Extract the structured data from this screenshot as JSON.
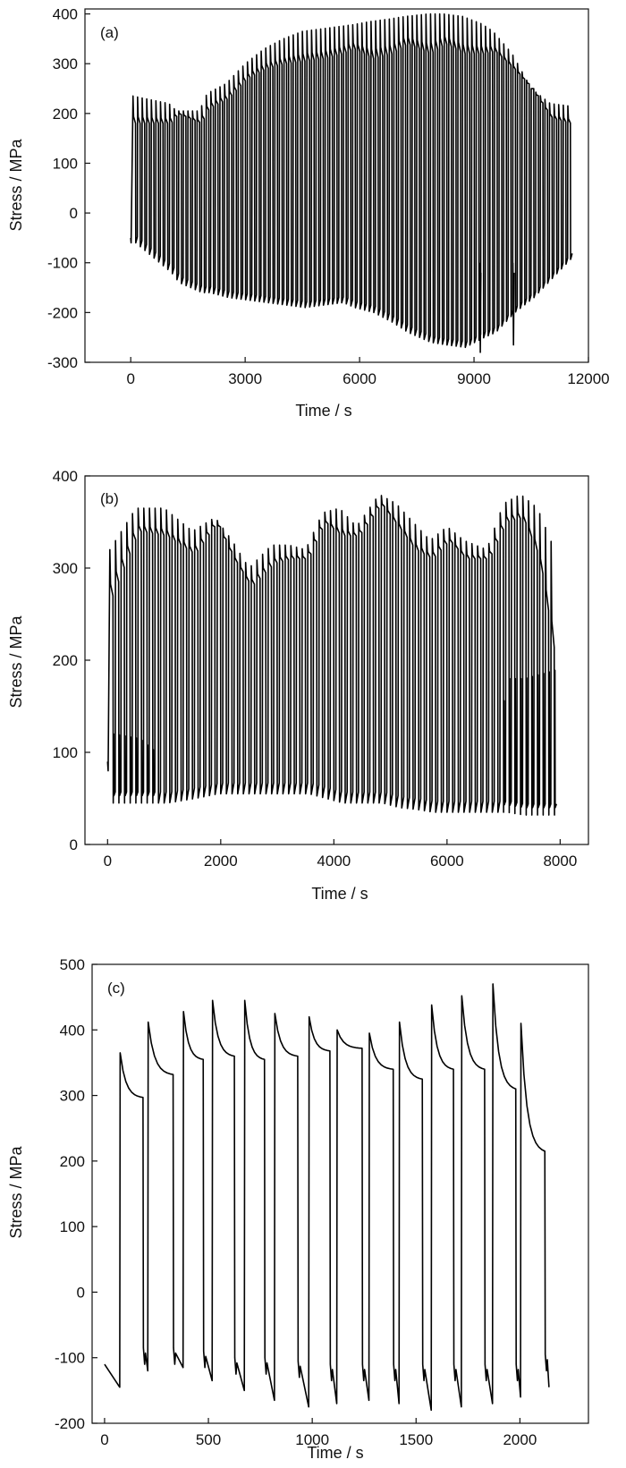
{
  "chart_data": [
    {
      "type": "line",
      "panel_label": "(a)",
      "xlabel": "Time / s",
      "ylabel": "Stress / MPa",
      "xlim": [
        -1200,
        12000
      ],
      "ylim": [
        -300,
        410
      ],
      "xticks": [
        0,
        3000,
        6000,
        9000,
        12000
      ],
      "yticks": [
        -300,
        -200,
        -100,
        0,
        100,
        200,
        300,
        400
      ],
      "grid": false,
      "legend": "none",
      "cycle_period_s": 120,
      "series": [
        {
          "start": {
            "x": 0,
            "y": -50
          },
          "cycle_x": [
            60,
            1000,
            1200,
            1800,
            2000,
            2500,
            3000,
            3500,
            4000,
            4500,
            5000,
            5500,
            5800,
            6300,
            6800,
            7200,
            7800,
            8200,
            8700,
            9200,
            9500,
            10000,
            10500,
            11000,
            11500
          ],
          "peak": [
            235,
            220,
            205,
            205,
            240,
            260,
            300,
            330,
            350,
            365,
            370,
            375,
            378,
            385,
            390,
            395,
            400,
            400,
            395,
            380,
            365,
            320,
            250,
            220,
            215
          ],
          "hold_end": [
            180,
            180,
            200,
            180,
            210,
            230,
            270,
            290,
            300,
            305,
            310,
            320,
            330,
            310,
            320,
            340,
            320,
            340,
            320,
            320,
            325,
            290,
            250,
            190,
            180
          ],
          "valley": [
            -60,
            -120,
            -140,
            -160,
            -160,
            -170,
            -175,
            -180,
            -185,
            -190,
            -185,
            -180,
            -190,
            -200,
            -220,
            -240,
            -260,
            -265,
            -270,
            -250,
            -240,
            -200,
            -170,
            -130,
            -90
          ]
        }
      ],
      "annotations": [
        {
          "x": 9150,
          "y": -280,
          "text": ""
        },
        {
          "x": 10020,
          "y": -265,
          "text": ""
        }
      ]
    },
    {
      "type": "line",
      "panel_label": "(b)",
      "xlabel": "Time / s",
      "ylabel": "Stress / MPa",
      "xlim": [
        -400,
        8500
      ],
      "ylim": [
        0,
        400
      ],
      "xticks": [
        0,
        2000,
        4000,
        6000,
        8000
      ],
      "yticks": [
        0,
        100,
        200,
        300,
        400
      ],
      "grid": false,
      "legend": "none",
      "cycle_period_s": 100,
      "series": [
        {
          "start": {
            "x": 0,
            "y": 90
          },
          "cycle_x": [
            40,
            500,
            1000,
            1500,
            1900,
            2200,
            2500,
            2900,
            3200,
            3500,
            3800,
            4100,
            4400,
            4800,
            5100,
            5400,
            5700,
            6000,
            6300,
            6700,
            7000,
            7300,
            7600,
            7900
          ],
          "peak": [
            320,
            365,
            365,
            340,
            355,
            330,
            300,
            325,
            325,
            320,
            360,
            365,
            345,
            380,
            370,
            350,
            330,
            345,
            330,
            320,
            370,
            380,
            365,
            320
          ],
          "hold_end": [
            270,
            340,
            335,
            315,
            350,
            310,
            280,
            305,
            310,
            310,
            350,
            335,
            335,
            370,
            345,
            320,
            310,
            330,
            310,
            310,
            350,
            355,
            310,
            190
          ],
          "valley": [
            45,
            45,
            45,
            50,
            55,
            55,
            55,
            55,
            55,
            55,
            50,
            45,
            45,
            45,
            40,
            38,
            35,
            35,
            35,
            35,
            35,
            32,
            32,
            32
          ],
          "mid": [
            120,
            115,
            90,
            80,
            70,
            65,
            60,
            60,
            60,
            60,
            60,
            60,
            60,
            60,
            60,
            60,
            60,
            60,
            60,
            60,
            180,
            180,
            185,
            190
          ]
        }
      ]
    },
    {
      "type": "line",
      "panel_label": "(c)",
      "xlabel": "Time / s",
      "ylabel": "Stress / MPa",
      "xlim": [
        -60,
        2330
      ],
      "ylim": [
        -200,
        500
      ],
      "xticks": [
        0,
        500,
        1000,
        1500,
        2000
      ],
      "yticks": [
        -200,
        -100,
        0,
        100,
        200,
        300,
        400,
        500
      ],
      "grid": false,
      "legend": "none",
      "series": [
        {
          "start": {
            "x": 0,
            "y": -110
          },
          "cycles": [
            {
              "t_up": 75,
              "peak": 365,
              "end": 297,
              "t_down": 185,
              "valley": -85,
              "compr_end": -120
            },
            {
              "t_up": 210,
              "peak": 412,
              "end": 332,
              "t_down": 330,
              "valley": -85,
              "compr_end": -115
            },
            {
              "t_up": 380,
              "peak": 428,
              "end": 355,
              "t_down": 475,
              "valley": -90,
              "compr_end": -135
            },
            {
              "t_up": 520,
              "peak": 445,
              "end": 360,
              "t_down": 625,
              "valley": -100,
              "compr_end": -150
            },
            {
              "t_up": 675,
              "peak": 445,
              "end": 355,
              "t_down": 770,
              "valley": -100,
              "compr_end": -165
            },
            {
              "t_up": 820,
              "peak": 425,
              "end": 360,
              "t_down": 930,
              "valley": -105,
              "compr_end": -175
            },
            {
              "t_up": 985,
              "peak": 420,
              "end": 368,
              "t_down": 1085,
              "valley": -110,
              "compr_end": -170
            },
            {
              "t_up": 1120,
              "peak": 400,
              "end": 372,
              "t_down": 1240,
              "valley": -110,
              "compr_end": -165
            },
            {
              "t_up": 1275,
              "peak": 395,
              "end": 340,
              "t_down": 1390,
              "valley": -110,
              "compr_end": -170
            },
            {
              "t_up": 1420,
              "peak": 412,
              "end": 325,
              "t_down": 1530,
              "valley": -110,
              "compr_end": -180
            },
            {
              "t_up": 1575,
              "peak": 438,
              "end": 340,
              "t_down": 1680,
              "valley": -110,
              "compr_end": -175
            },
            {
              "t_up": 1720,
              "peak": 452,
              "end": 340,
              "t_down": 1830,
              "valley": -110,
              "compr_end": -170
            },
            {
              "t_up": 1870,
              "peak": 470,
              "end": 310,
              "t_down": 1980,
              "valley": -110,
              "compr_end": -160
            },
            {
              "t_up": 2005,
              "peak": 410,
              "end": 215,
              "t_down": 2120,
              "valley": -95,
              "compr_end": -145
            }
          ]
        }
      ]
    }
  ]
}
